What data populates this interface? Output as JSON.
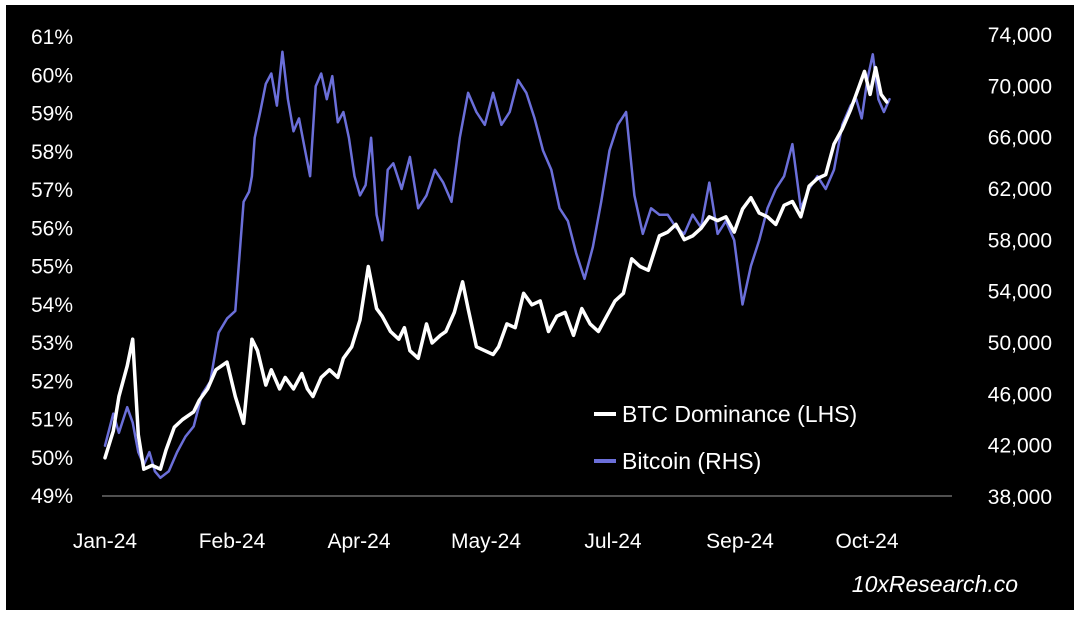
{
  "chart_data": {
    "type": "line",
    "title": "",
    "credit": "10xResearch.co",
    "x_categories": [
      "Jan-24",
      "Feb-24",
      "Apr-24",
      "May-24",
      "Jul-24",
      "Sep-24",
      "Oct-24"
    ],
    "x_domain": [
      0,
      285
    ],
    "left_axis": {
      "ticks": [
        "49%",
        "50%",
        "51%",
        "52%",
        "53%",
        "54%",
        "55%",
        "56%",
        "57%",
        "58%",
        "59%",
        "60%",
        "61%"
      ],
      "range": [
        49,
        61
      ]
    },
    "right_axis": {
      "ticks": [
        "38,000",
        "42,000",
        "46,000",
        "50,000",
        "54,000",
        "58,000",
        "62,000",
        "66,000",
        "70,000",
        "74,000"
      ],
      "range": [
        38000,
        74000
      ]
    },
    "series": [
      {
        "name": "BTC Dominance (LHS)",
        "axis": "left",
        "color": "#ffffff",
        "x": [
          0,
          3,
          5,
          8,
          10,
          12,
          14,
          17,
          20,
          22,
          25,
          28,
          32,
          34,
          37,
          40,
          44,
          47,
          50,
          53,
          55,
          58,
          60,
          63,
          65,
          68,
          71,
          73,
          75,
          78,
          81,
          84,
          86,
          89,
          92,
          95,
          98,
          100,
          103,
          106,
          108,
          110,
          113,
          116,
          118,
          121,
          123,
          126,
          129,
          131,
          134,
          137,
          140,
          142,
          145,
          148,
          151,
          154,
          157,
          160,
          163,
          166,
          169,
          172,
          175,
          178,
          181,
          184,
          187,
          190,
          193,
          196,
          200,
          203,
          206,
          209,
          212,
          215,
          218,
          221,
          224,
          227,
          230,
          233,
          236,
          239,
          242,
          245,
          248,
          251,
          254,
          257,
          260,
          263,
          266,
          269,
          272,
          274,
          276,
          278,
          280,
          282
        ],
        "values": [
          50.0,
          50.7,
          51.6,
          52.4,
          53.1,
          50.6,
          49.7,
          49.8,
          49.7,
          50.2,
          50.8,
          51.0,
          51.2,
          51.5,
          51.8,
          52.3,
          52.5,
          51.6,
          50.9,
          53.1,
          52.8,
          51.9,
          52.3,
          51.8,
          52.1,
          51.8,
          52.2,
          51.8,
          51.6,
          52.1,
          52.3,
          52.1,
          52.6,
          52.9,
          53.6,
          55.0,
          53.9,
          53.7,
          53.3,
          53.1,
          53.4,
          52.8,
          52.6,
          53.5,
          53.0,
          53.2,
          53.3,
          53.8,
          54.6,
          53.9,
          52.9,
          52.8,
          52.7,
          52.9,
          53.5,
          53.4,
          54.3,
          54.0,
          54.1,
          53.3,
          53.7,
          53.8,
          53.2,
          53.9,
          53.5,
          53.3,
          53.7,
          54.1,
          54.3,
          55.2,
          55.0,
          54.9,
          55.8,
          55.9,
          56.1,
          55.7,
          55.8,
          56.0,
          56.3,
          56.2,
          56.3,
          55.9,
          56.5,
          56.8,
          56.4,
          56.3,
          56.1,
          56.6,
          56.7,
          56.3,
          57.1,
          57.3,
          57.4,
          58.2,
          58.6,
          59.1,
          59.7,
          60.1,
          59.5,
          60.2,
          59.5,
          59.3
        ]
      },
      {
        "name": "Bitcoin (RHS)",
        "axis": "right",
        "color": "#6b6fd9",
        "x": [
          0,
          3,
          5,
          8,
          10,
          12,
          14,
          16,
          18,
          20,
          23,
          26,
          29,
          32,
          35,
          38,
          41,
          44,
          47,
          50,
          52,
          53,
          54,
          56,
          58,
          60,
          62,
          64,
          66,
          68,
          70,
          72,
          74,
          76,
          78,
          80,
          82,
          84,
          86,
          88,
          90,
          92,
          94,
          96,
          98,
          100,
          102,
          104,
          107,
          110,
          113,
          116,
          119,
          122,
          125,
          128,
          131,
          134,
          137,
          140,
          143,
          146,
          149,
          152,
          155,
          158,
          161,
          164,
          167,
          170,
          173,
          176,
          179,
          182,
          185,
          188,
          191,
          194,
          197,
          200,
          203,
          206,
          209,
          212,
          215,
          218,
          221,
          224,
          227,
          230,
          233,
          236,
          239,
          242,
          245,
          248,
          251,
          254,
          257,
          260,
          263,
          266,
          269,
          271,
          273,
          275,
          277,
          279,
          281,
          283
        ],
        "values": [
          42000,
          44500,
          43000,
          45000,
          43800,
          41500,
          40500,
          41500,
          40000,
          39500,
          40000,
          41500,
          42700,
          43500,
          46000,
          47000,
          50800,
          51900,
          52500,
          61000,
          61800,
          63000,
          66000,
          68000,
          70200,
          71000,
          68500,
          72700,
          69000,
          66500,
          67500,
          65200,
          63000,
          70000,
          71000,
          69000,
          70800,
          67200,
          68000,
          66000,
          63000,
          61500,
          62300,
          66000,
          60000,
          58000,
          63500,
          64000,
          62000,
          64500,
          60500,
          61500,
          63500,
          62500,
          61000,
          66000,
          69500,
          68000,
          67000,
          69500,
          67000,
          68000,
          70500,
          69500,
          67500,
          65000,
          63500,
          60500,
          59500,
          57000,
          55000,
          57500,
          61000,
          65000,
          67000,
          68000,
          61500,
          58500,
          60500,
          60000,
          60000,
          59000,
          58500,
          60000,
          59000,
          62500,
          58500,
          59500,
          58000,
          53000,
          56000,
          58000,
          60500,
          62000,
          63000,
          65500,
          60500,
          62000,
          63000,
          62000,
          63500,
          67000,
          68500,
          69000,
          67500,
          70500,
          72500,
          69000,
          68000,
          69000
        ]
      }
    ],
    "legend": [
      {
        "label": "BTC Dominance (LHS)",
        "color": "#ffffff"
      },
      {
        "label": "Bitcoin (RHS)",
        "color": "#6b6fd9"
      }
    ],
    "legend_placement": "bottom-right",
    "grid": false
  }
}
